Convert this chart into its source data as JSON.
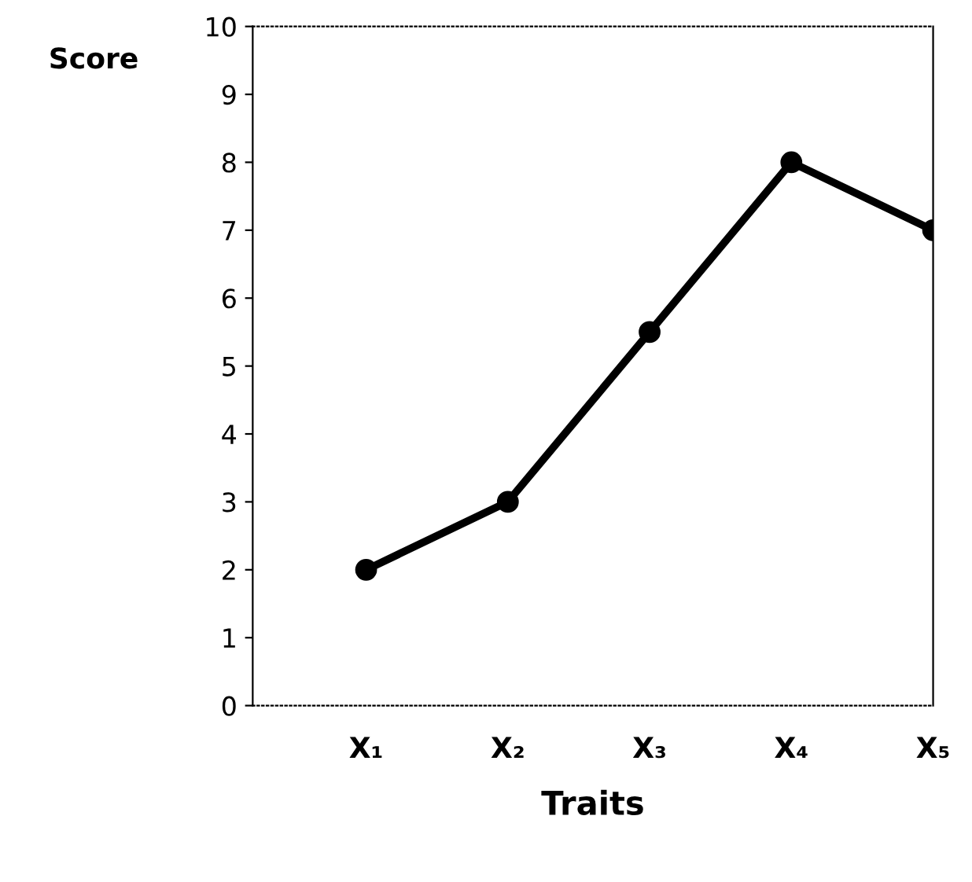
{
  "chart_data": {
    "type": "line",
    "xlabel": "Traits",
    "ylabel": "Score",
    "categories": [
      "X₁",
      "X₂",
      "X₃",
      "X₄",
      "X₅"
    ],
    "values": [
      2,
      3,
      5.5,
      8,
      7
    ],
    "color": "#000000",
    "ylim": [
      0,
      10
    ],
    "yticks": [
      0,
      1,
      2,
      3,
      4,
      5,
      6,
      7,
      8,
      9,
      10
    ],
    "marker": "circle",
    "line_style": "solid",
    "grid": false,
    "legend": false
  }
}
